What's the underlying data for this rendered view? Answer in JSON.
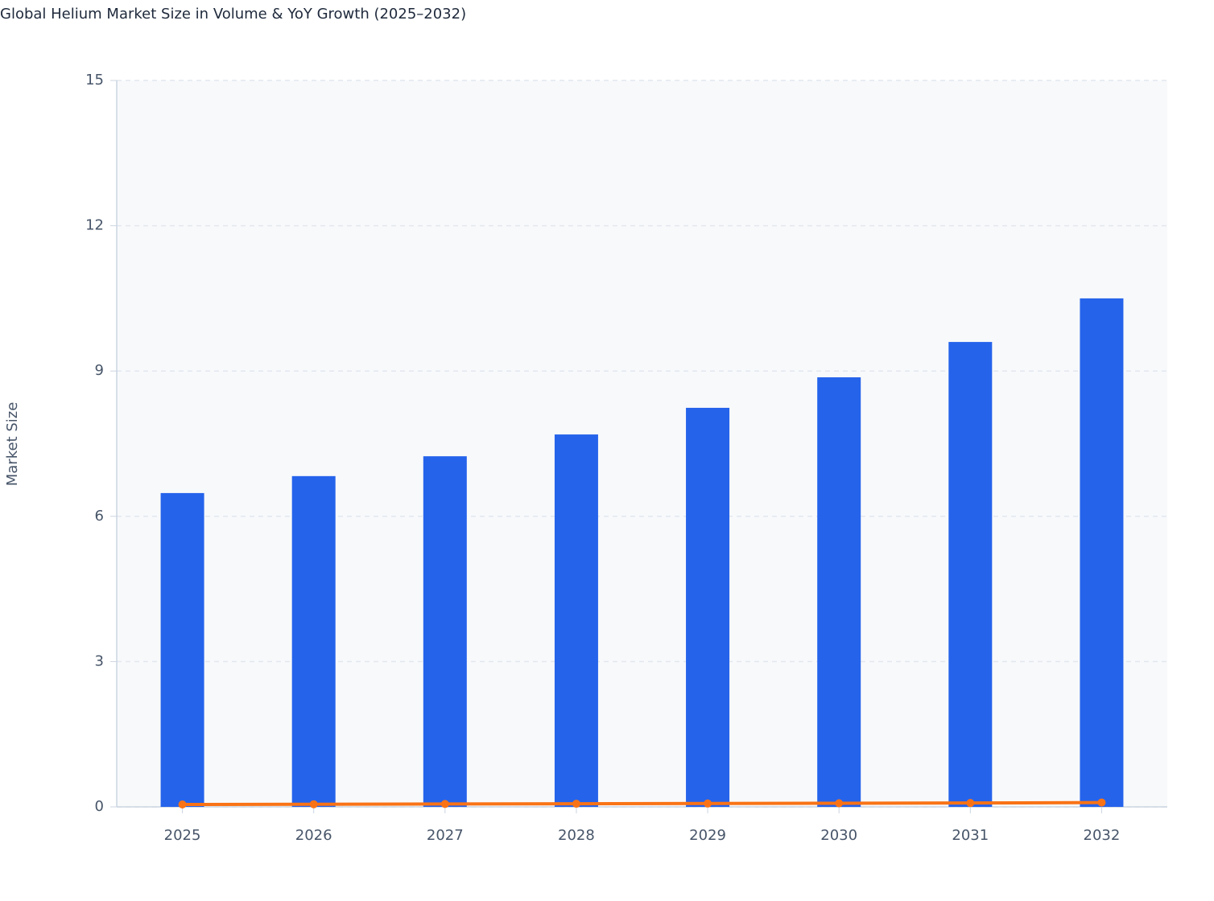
{
  "chart_data": {
    "type": "bar",
    "title": "Global Helium Market Size in Volume & YoY Growth (2025–2032)",
    "y_label": "Market Size",
    "categories": [
      "2025",
      "2026",
      "2027",
      "2028",
      "2029",
      "2030",
      "2031",
      "2032"
    ],
    "series": [
      {
        "type": "bar",
        "color": "#2563eb",
        "values": [
          6.48,
          6.83,
          7.24,
          7.69,
          8.24,
          8.87,
          9.6,
          10.5
        ]
      },
      {
        "type": "line",
        "color": "#f97316",
        "values": [
          0.05,
          0.055,
          0.06,
          0.065,
          0.07,
          0.075,
          0.08,
          0.09
        ]
      }
    ],
    "ylim": [
      0,
      15
    ],
    "yticks": [
      0,
      3,
      6,
      9,
      12,
      15
    ],
    "grid": true
  }
}
